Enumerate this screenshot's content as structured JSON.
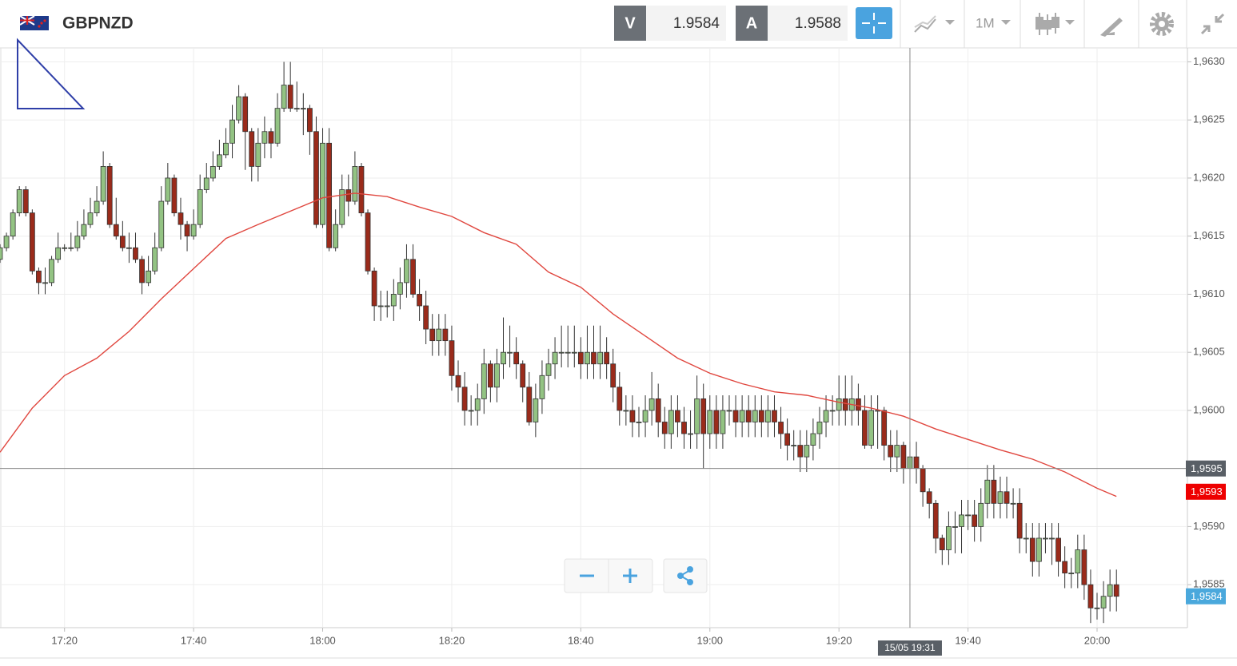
{
  "chart_data": {
    "type": "candlestick",
    "symbol": "GBPNZD",
    "bid_label": "V",
    "bid": 1.9584,
    "ask_label": "A",
    "ask": 1.9588,
    "timeframe": "1M",
    "up_color": "#93c383",
    "down_color": "#9a2b1b",
    "x": [
      "17:10",
      "17:11",
      "17:12",
      "17:13",
      "17:14",
      "17:15",
      "17:16",
      "17:17",
      "17:18",
      "17:19",
      "17:20",
      "17:21",
      "17:22",
      "17:23",
      "17:24",
      "17:25",
      "17:26",
      "17:27",
      "17:28",
      "17:29",
      "17:30",
      "17:31",
      "17:32",
      "17:33",
      "17:34",
      "17:35",
      "17:36",
      "17:37",
      "17:38",
      "17:39",
      "17:40",
      "17:41",
      "17:42",
      "17:43",
      "17:44",
      "17:45",
      "17:46",
      "17:47",
      "17:48",
      "17:49",
      "17:50",
      "17:51",
      "17:52",
      "17:53",
      "17:54",
      "17:55",
      "17:56",
      "17:57",
      "17:58",
      "17:59",
      "18:00",
      "18:01",
      "18:02",
      "18:03",
      "18:04",
      "18:05",
      "18:06",
      "18:07",
      "18:08",
      "18:09",
      "18:10",
      "18:11",
      "18:12",
      "18:13",
      "18:14",
      "18:15",
      "18:16",
      "18:17",
      "18:18",
      "18:19",
      "18:20",
      "18:21",
      "18:22",
      "18:23",
      "18:24",
      "18:25",
      "18:26",
      "18:27",
      "18:28",
      "18:29",
      "18:30",
      "18:31",
      "18:32",
      "18:33",
      "18:34",
      "18:35",
      "18:36",
      "18:37",
      "18:38",
      "18:39",
      "18:40",
      "18:41",
      "18:42",
      "18:43",
      "18:44",
      "18:45",
      "18:46",
      "18:47",
      "18:48",
      "18:49",
      "18:50",
      "18:51",
      "18:52",
      "18:53",
      "18:54",
      "18:55",
      "18:56",
      "18:57",
      "18:58",
      "18:59",
      "19:00",
      "19:01",
      "19:02",
      "19:03",
      "19:04",
      "19:05",
      "19:06",
      "19:07",
      "19:08",
      "19:09",
      "19:10",
      "19:11",
      "19:12",
      "19:13",
      "19:14",
      "19:15",
      "19:16",
      "19:17",
      "19:18",
      "19:19",
      "19:20",
      "19:21",
      "19:22",
      "19:23",
      "19:24",
      "19:25",
      "19:26",
      "19:27",
      "19:28",
      "19:29",
      "19:30",
      "19:31",
      "19:32",
      "19:33",
      "19:34",
      "19:35",
      "19:36",
      "19:37",
      "19:38",
      "19:39",
      "19:40",
      "19:41",
      "19:42",
      "19:43",
      "19:44",
      "19:45",
      "19:46",
      "19:47",
      "19:48",
      "19:49",
      "19:50",
      "19:51",
      "19:52",
      "19:53",
      "19:54",
      "19:55",
      "19:56",
      "19:57",
      "19:58",
      "19:59",
      "20:00",
      "20:01",
      "20:02",
      "20:03"
    ],
    "candles": [
      [
        1.9613,
        1.96143,
        1.96127,
        1.9614
      ],
      [
        1.9614,
        1.96153,
        1.96137,
        1.9615
      ],
      [
        1.9615,
        1.96173,
        1.96147,
        1.9617
      ],
      [
        1.9617,
        1.96193,
        1.96167,
        1.9619
      ],
      [
        1.9619,
        1.96193,
        1.96167,
        1.9617
      ],
      [
        1.9617,
        1.96173,
        1.96117,
        1.9612
      ],
      [
        1.9612,
        1.96123,
        1.961,
        1.9611
      ],
      [
        1.9611,
        1.96123,
        1.961,
        1.9611
      ],
      [
        1.9611,
        1.96133,
        1.96107,
        1.9613
      ],
      [
        1.9613,
        1.96153,
        1.96127,
        1.9614
      ],
      [
        1.9614,
        1.96143,
        1.96137,
        1.9614
      ],
      [
        1.9614,
        1.96153,
        1.96137,
        1.9614
      ],
      [
        1.9614,
        1.96163,
        1.96137,
        1.9615
      ],
      [
        1.9615,
        1.96173,
        1.96147,
        1.9616
      ],
      [
        1.9616,
        1.96183,
        1.96157,
        1.9617
      ],
      [
        1.9617,
        1.96193,
        1.96167,
        1.9618
      ],
      [
        1.9618,
        1.96223,
        1.96177,
        1.9621
      ],
      [
        1.9621,
        1.96213,
        1.96157,
        1.9616
      ],
      [
        1.9616,
        1.96183,
        1.96147,
        1.9615
      ],
      [
        1.9615,
        1.96163,
        1.96137,
        1.9614
      ],
      [
        1.9614,
        1.96153,
        1.96127,
        1.9614
      ],
      [
        1.9614,
        1.96153,
        1.96127,
        1.9613
      ],
      [
        1.9613,
        1.96133,
        1.961,
        1.9611
      ],
      [
        1.9611,
        1.96133,
        1.96107,
        1.9612
      ],
      [
        1.9612,
        1.96153,
        1.96117,
        1.9614
      ],
      [
        1.9614,
        1.96193,
        1.96137,
        1.9618
      ],
      [
        1.9618,
        1.96213,
        1.96177,
        1.962
      ],
      [
        1.962,
        1.96203,
        1.96167,
        1.9617
      ],
      [
        1.9617,
        1.96183,
        1.96147,
        1.9616
      ],
      [
        1.9616,
        1.96163,
        1.96137,
        1.9615
      ],
      [
        1.9615,
        1.96173,
        1.96147,
        1.9616
      ],
      [
        1.9616,
        1.96203,
        1.96157,
        1.9619
      ],
      [
        1.9619,
        1.96213,
        1.96187,
        1.962
      ],
      [
        1.962,
        1.96223,
        1.96197,
        1.9621
      ],
      [
        1.9621,
        1.96233,
        1.96207,
        1.9622
      ],
      [
        1.9622,
        1.96243,
        1.96217,
        1.9623
      ],
      [
        1.9623,
        1.96263,
        1.96217,
        1.9625
      ],
      [
        1.9625,
        1.9628,
        1.96247,
        1.9627
      ],
      [
        1.9627,
        1.96273,
        1.96207,
        1.9624
      ],
      [
        1.9624,
        1.96243,
        1.96197,
        1.9621
      ],
      [
        1.9621,
        1.96243,
        1.96197,
        1.9623
      ],
      [
        1.9623,
        1.96253,
        1.96217,
        1.9624
      ],
      [
        1.9624,
        1.96243,
        1.96217,
        1.9623
      ],
      [
        1.9623,
        1.96273,
        1.96227,
        1.9626
      ],
      [
        1.9626,
        1.963,
        1.96257,
        1.9628
      ],
      [
        1.9628,
        1.963,
        1.96257,
        1.9626
      ],
      [
        1.9626,
        1.96283,
        1.96257,
        1.9626
      ],
      [
        1.9626,
        1.96273,
        1.96237,
        1.9626
      ],
      [
        1.9626,
        1.96263,
        1.9622,
        1.9624
      ],
      [
        1.9624,
        1.96253,
        1.96157,
        1.9616
      ],
      [
        1.9616,
        1.96243,
        1.96157,
        1.9623
      ],
      [
        1.9623,
        1.96243,
        1.96137,
        1.9614
      ],
      [
        1.9614,
        1.96173,
        1.96137,
        1.9616
      ],
      [
        1.9616,
        1.96203,
        1.96157,
        1.9619
      ],
      [
        1.9619,
        1.96203,
        1.96167,
        1.9618
      ],
      [
        1.9618,
        1.96223,
        1.96177,
        1.9621
      ],
      [
        1.9621,
        1.96213,
        1.96167,
        1.9617
      ],
      [
        1.9617,
        1.96173,
        1.96117,
        1.9612
      ],
      [
        1.9612,
        1.96123,
        1.96077,
        1.9609
      ],
      [
        1.9609,
        1.96103,
        1.96077,
        1.9609
      ],
      [
        1.9609,
        1.96103,
        1.9608,
        1.9609
      ],
      [
        1.9609,
        1.96113,
        1.96077,
        1.961
      ],
      [
        1.961,
        1.96123,
        1.96087,
        1.9611
      ],
      [
        1.9611,
        1.96143,
        1.96097,
        1.9613
      ],
      [
        1.9613,
        1.96143,
        1.96097,
        1.961
      ],
      [
        1.961,
        1.96113,
        1.96077,
        1.9609
      ],
      [
        1.9609,
        1.96103,
        1.96057,
        1.9607
      ],
      [
        1.9607,
        1.96083,
        1.96047,
        1.9606
      ],
      [
        1.9606,
        1.96083,
        1.96047,
        1.9607
      ],
      [
        1.9607,
        1.96083,
        1.96047,
        1.9606
      ],
      [
        1.9606,
        1.96073,
        1.96017,
        1.9603
      ],
      [
        1.9603,
        1.96043,
        1.96007,
        1.9602
      ],
      [
        1.9602,
        1.96033,
        1.95987,
        1.96
      ],
      [
        1.96,
        1.96013,
        1.95987,
        1.96
      ],
      [
        1.96,
        1.96023,
        1.95987,
        1.9601
      ],
      [
        1.9601,
        1.96053,
        1.95997,
        1.9604
      ],
      [
        1.9604,
        1.96043,
        1.96007,
        1.9602
      ],
      [
        1.9602,
        1.96053,
        1.96007,
        1.9604
      ],
      [
        1.9604,
        1.9608,
        1.96027,
        1.9605
      ],
      [
        1.9605,
        1.96073,
        1.96037,
        1.9605
      ],
      [
        1.9605,
        1.96063,
        1.96027,
        1.9604
      ],
      [
        1.9604,
        1.96043,
        1.96007,
        1.9602
      ],
      [
        1.9602,
        1.96033,
        1.95987,
        1.9599
      ],
      [
        1.9599,
        1.96023,
        1.95977,
        1.9601
      ],
      [
        1.9601,
        1.96043,
        1.95997,
        1.9603
      ],
      [
        1.9603,
        1.96053,
        1.96017,
        1.9604
      ],
      [
        1.9604,
        1.96063,
        1.96027,
        1.9605
      ],
      [
        1.9605,
        1.96073,
        1.96037,
        1.9605
      ],
      [
        1.9605,
        1.96073,
        1.96037,
        1.9605
      ],
      [
        1.9605,
        1.96073,
        1.96037,
        1.9605
      ],
      [
        1.9605,
        1.96063,
        1.96027,
        1.9604
      ],
      [
        1.9604,
        1.96073,
        1.96027,
        1.9605
      ],
      [
        1.9605,
        1.96073,
        1.96027,
        1.9604
      ],
      [
        1.9604,
        1.96073,
        1.96027,
        1.9605
      ],
      [
        1.9605,
        1.96063,
        1.96027,
        1.9604
      ],
      [
        1.9604,
        1.96053,
        1.96007,
        1.9602
      ],
      [
        1.9602,
        1.96033,
        1.95987,
        1.96
      ],
      [
        1.96,
        1.96013,
        1.95987,
        1.96
      ],
      [
        1.96,
        1.96013,
        1.95977,
        1.9599
      ],
      [
        1.9599,
        1.96003,
        1.95977,
        1.9599
      ],
      [
        1.9599,
        1.96013,
        1.95977,
        1.96
      ],
      [
        1.96,
        1.96033,
        1.95987,
        1.9601
      ],
      [
        1.9601,
        1.96023,
        1.95977,
        1.9599
      ],
      [
        1.9599,
        1.96003,
        1.95967,
        1.9598
      ],
      [
        1.9598,
        1.96013,
        1.95967,
        1.96
      ],
      [
        1.96,
        1.96013,
        1.95977,
        1.9599
      ],
      [
        1.9599,
        1.96003,
        1.95967,
        1.9598
      ],
      [
        1.9598,
        1.96,
        1.95967,
        1.9598
      ],
      [
        1.9598,
        1.9603,
        1.95967,
        1.9601
      ],
      [
        1.9601,
        1.96023,
        1.9595,
        1.9598
      ],
      [
        1.9598,
        1.96013,
        1.95967,
        1.96
      ],
      [
        1.96,
        1.96013,
        1.95967,
        1.9598
      ],
      [
        1.9598,
        1.96013,
        1.95967,
        1.96
      ],
      [
        1.96,
        1.96013,
        1.95987,
        1.96
      ],
      [
        1.96,
        1.96013,
        1.95977,
        1.9599
      ],
      [
        1.9599,
        1.96013,
        1.95977,
        1.96
      ],
      [
        1.96,
        1.96013,
        1.95977,
        1.9599
      ],
      [
        1.9599,
        1.96013,
        1.95977,
        1.96
      ],
      [
        1.96,
        1.96013,
        1.95977,
        1.9599
      ],
      [
        1.9599,
        1.96013,
        1.95977,
        1.96
      ],
      [
        1.96,
        1.96013,
        1.95977,
        1.9599
      ],
      [
        1.9599,
        1.96003,
        1.95967,
        1.9598
      ],
      [
        1.9598,
        1.95993,
        1.95957,
        1.9597
      ],
      [
        1.9597,
        1.95983,
        1.95957,
        1.9597
      ],
      [
        1.9597,
        1.95983,
        1.95947,
        1.9596
      ],
      [
        1.9596,
        1.95983,
        1.95947,
        1.9597
      ],
      [
        1.9597,
        1.95993,
        1.95957,
        1.9598
      ],
      [
        1.9598,
        1.96003,
        1.95967,
        1.9599
      ],
      [
        1.9599,
        1.96013,
        1.95977,
        1.96
      ],
      [
        1.96,
        1.96013,
        1.95987,
        1.96
      ],
      [
        1.96,
        1.9603,
        1.95987,
        1.9601
      ],
      [
        1.9601,
        1.9603,
        1.95987,
        1.96
      ],
      [
        1.96,
        1.9603,
        1.95987,
        1.9601
      ],
      [
        1.9601,
        1.96023,
        1.95987,
        1.96
      ],
      [
        1.96,
        1.96013,
        1.95967,
        1.9597
      ],
      [
        1.9597,
        1.96013,
        1.95967,
        1.96
      ],
      [
        1.96,
        1.96013,
        1.95967,
        1.96
      ],
      [
        1.96,
        1.96003,
        1.95957,
        1.9597
      ],
      [
        1.9597,
        1.95983,
        1.95947,
        1.9596
      ],
      [
        1.9596,
        1.95983,
        1.95947,
        1.9597
      ],
      [
        1.9597,
        1.95973,
        1.95937,
        1.9595
      ],
      [
        1.9595,
        1.95973,
        1.95937,
        1.9596
      ],
      [
        1.9596,
        1.95973,
        1.95937,
        1.9595
      ],
      [
        1.9595,
        1.95953,
        1.95917,
        1.9593
      ],
      [
        1.9593,
        1.95933,
        1.95907,
        1.9592
      ],
      [
        1.9592,
        1.95923,
        1.95877,
        1.9589
      ],
      [
        1.9589,
        1.95893,
        1.95867,
        1.9588
      ],
      [
        1.9588,
        1.95913,
        1.95867,
        1.959
      ],
      [
        1.959,
        1.95913,
        1.95877,
        1.959
      ],
      [
        1.959,
        1.95923,
        1.95877,
        1.9591
      ],
      [
        1.9591,
        1.95923,
        1.95897,
        1.9591
      ],
      [
        1.9591,
        1.95923,
        1.95887,
        1.959
      ],
      [
        1.959,
        1.95933,
        1.95887,
        1.9592
      ],
      [
        1.9592,
        1.95953,
        1.95907,
        1.9594
      ],
      [
        1.9594,
        1.95953,
        1.95907,
        1.9592
      ],
      [
        1.9592,
        1.95943,
        1.95907,
        1.9593
      ],
      [
        1.9593,
        1.95943,
        1.95907,
        1.9592
      ],
      [
        1.9592,
        1.95933,
        1.95907,
        1.9592
      ],
      [
        1.9592,
        1.95933,
        1.95877,
        1.9589
      ],
      [
        1.9589,
        1.95903,
        1.95877,
        1.9589
      ],
      [
        1.9589,
        1.95903,
        1.95857,
        1.9587
      ],
      [
        1.9587,
        1.95903,
        1.95857,
        1.9589
      ],
      [
        1.9589,
        1.95903,
        1.95877,
        1.9589
      ],
      [
        1.9589,
        1.95903,
        1.95867,
        1.9589
      ],
      [
        1.9589,
        1.95903,
        1.95857,
        1.9587
      ],
      [
        1.9587,
        1.95883,
        1.95847,
        1.9586
      ],
      [
        1.9586,
        1.95873,
        1.95847,
        1.9586
      ],
      [
        1.9586,
        1.95893,
        1.95847,
        1.9588
      ],
      [
        1.9588,
        1.95893,
        1.95837,
        1.9585
      ],
      [
        1.9585,
        1.95863,
        1.95817,
        1.9583
      ],
      [
        1.9583,
        1.95843,
        1.9582,
        1.9583
      ],
      [
        1.9583,
        1.95853,
        1.95817,
        1.9584
      ],
      [
        1.9584,
        1.95863,
        1.95827,
        1.9585
      ],
      [
        1.9585,
        1.95863,
        1.95827,
        1.9584
      ]
    ],
    "ma": {
      "color": "#e0473f",
      "x": [
        "17:10",
        "17:15",
        "17:20",
        "17:25",
        "17:30",
        "17:35",
        "17:40",
        "17:45",
        "17:50",
        "18:00",
        "18:05",
        "18:10",
        "18:15",
        "18:20",
        "18:25",
        "18:30",
        "18:35",
        "18:40",
        "18:45",
        "18:50",
        "18:55",
        "19:00",
        "19:05",
        "19:10",
        "19:15",
        "19:20",
        "19:25",
        "19:30",
        "19:35",
        "19:40",
        "19:45",
        "19:50",
        "19:55",
        "20:00",
        "20:03"
      ],
      "values": [
        1.95964,
        1.96002,
        1.9603,
        1.96045,
        1.96068,
        1.96096,
        1.96122,
        1.96148,
        1.9616,
        1.96183,
        1.96187,
        1.96184,
        1.96175,
        1.96167,
        1.96153,
        1.96143,
        1.96119,
        1.96106,
        1.96083,
        1.96064,
        1.96045,
        1.96032,
        1.96023,
        1.96016,
        1.96013,
        1.96007,
        1.96002,
        1.95995,
        1.95984,
        1.95975,
        1.95966,
        1.95958,
        1.95947,
        1.95933,
        1.95926
      ]
    },
    "xlim": [
      "17:10",
      "20:14"
    ],
    "xticks": [
      "17:20",
      "17:40",
      "18:00",
      "18:20",
      "18:40",
      "19:00",
      "19:20",
      "19:40",
      "20:00"
    ],
    "ylim": [
      1.95813,
      1.96312
    ],
    "yticks": [
      {
        "value": 1.9585,
        "label": "1,9585"
      },
      {
        "value": 1.959,
        "label": "1,9590"
      },
      {
        "value": 1.9595,
        "label": "1,9595"
      },
      {
        "value": 1.96,
        "label": "1,9600"
      },
      {
        "value": 1.9605,
        "label": "1,9605"
      },
      {
        "value": 1.961,
        "label": "1,9610"
      },
      {
        "value": 1.9615,
        "label": "1,9615"
      },
      {
        "value": 1.962,
        "label": "1,9620"
      },
      {
        "value": 1.9625,
        "label": "1,9625"
      },
      {
        "value": 1.963,
        "label": "1,9630"
      }
    ],
    "grid": true,
    "crosshair": {
      "x": "19:31",
      "x_label": "15/05 19:31",
      "y": {
        "value": 1.9595,
        "label": "1,9595"
      }
    },
    "ma_last": {
      "value": 1.9593,
      "label": "1,9593"
    },
    "last_price": {
      "value": 1.9584,
      "label": "1,9584"
    }
  }
}
